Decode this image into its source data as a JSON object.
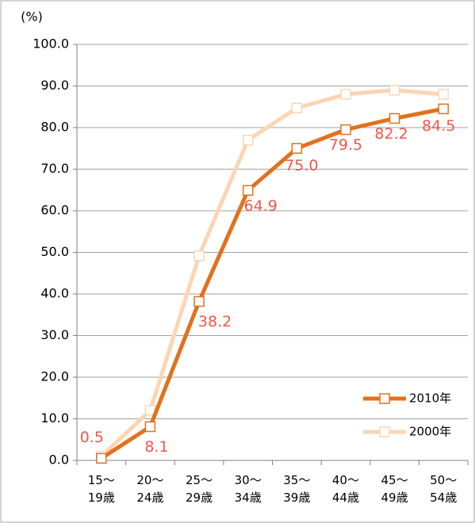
{
  "chart_data": {
    "type": "line",
    "y_label": "(%)",
    "categories": [
      "15～\n19歳",
      "20～\n24歳",
      "25～\n29歳",
      "30～\n34歳",
      "35～\n39歳",
      "40～\n44歳",
      "45～\n49歳",
      "50～\n54歳"
    ],
    "series": [
      {
        "name": "2010年",
        "color": "#e2711d",
        "values": [
          0.5,
          8.1,
          38.2,
          64.9,
          75.0,
          79.5,
          82.2,
          84.5
        ],
        "value_labels": [
          "0.5",
          "8.1",
          "38.2",
          "64.9",
          "75.0",
          "79.5",
          "82.2",
          "84.5"
        ],
        "label_color": "#f0574b"
      },
      {
        "name": "2000年",
        "color": "#fbd5b3",
        "values": [
          1.0,
          12.0,
          49.2,
          77.0,
          84.7,
          88.0,
          89.0,
          88.0
        ]
      }
    ],
    "ylim": [
      0,
      100
    ],
    "yticks": [
      {
        "value": 0,
        "label": "0.0"
      },
      {
        "value": 10,
        "label": "10.0"
      },
      {
        "value": 20,
        "label": "20.0"
      },
      {
        "value": 30,
        "label": "30.0"
      },
      {
        "value": 40,
        "label": "40.0"
      },
      {
        "value": 50,
        "label": "50.0"
      },
      {
        "value": 60,
        "label": "60.0"
      },
      {
        "value": 70,
        "label": "70.0"
      },
      {
        "value": 80,
        "label": "80.0"
      },
      {
        "value": 90,
        "label": "90.0"
      },
      {
        "value": 100,
        "label": "100.0"
      }
    ],
    "grid": true,
    "legend": "lower right"
  }
}
